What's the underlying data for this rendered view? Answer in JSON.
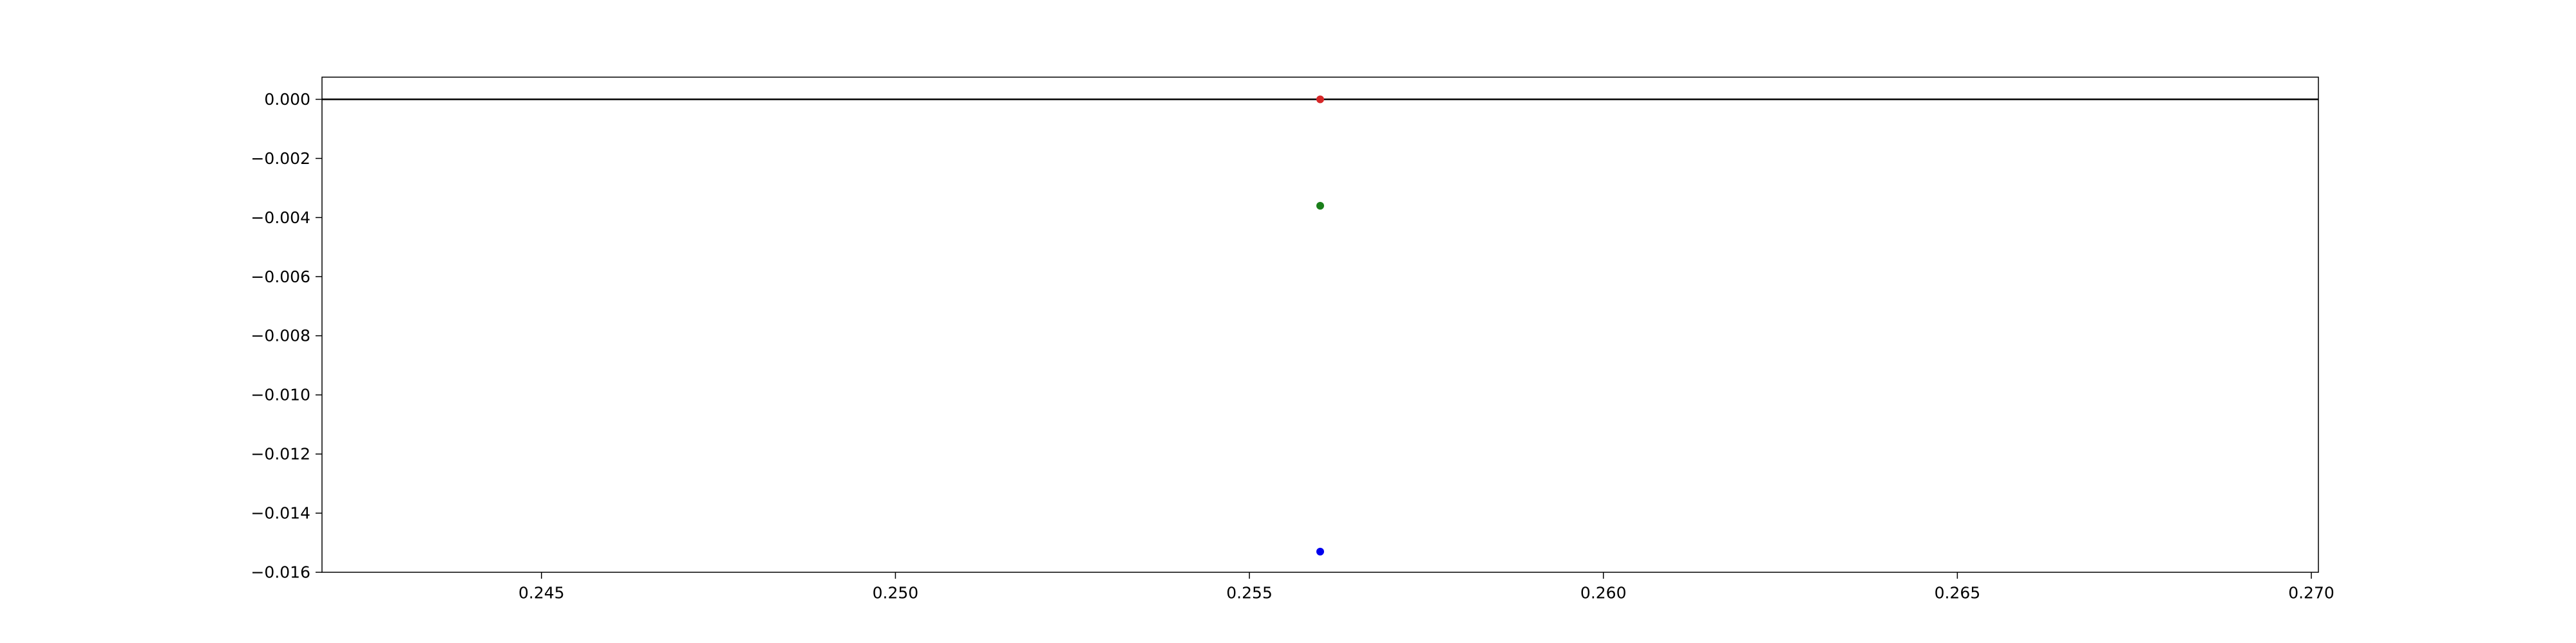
{
  "chart_data": {
    "type": "scatter",
    "xlim": [
      0.2419,
      0.2701
    ],
    "ylim": [
      -0.016,
      0.00075
    ],
    "x_ticks": [
      {
        "value": 0.245,
        "label": "0.245"
      },
      {
        "value": 0.25,
        "label": "0.250"
      },
      {
        "value": 0.255,
        "label": "0.255"
      },
      {
        "value": 0.26,
        "label": "0.260"
      },
      {
        "value": 0.265,
        "label": "0.265"
      },
      {
        "value": 0.27,
        "label": "0.270"
      }
    ],
    "y_ticks": [
      {
        "value": 0.0,
        "label": "0.000"
      },
      {
        "value": -0.002,
        "label": "−0.002"
      },
      {
        "value": -0.004,
        "label": "−0.004"
      },
      {
        "value": -0.006,
        "label": "−0.006"
      },
      {
        "value": -0.008,
        "label": "−0.008"
      },
      {
        "value": -0.01,
        "label": "−0.010"
      },
      {
        "value": -0.012,
        "label": "−0.012"
      },
      {
        "value": -0.014,
        "label": "−0.014"
      },
      {
        "value": -0.016,
        "label": "−0.016"
      }
    ],
    "hline": {
      "y": 0.0,
      "color": "#000000"
    },
    "points": [
      {
        "x": 0.256,
        "y": 0.0,
        "color": "#d62728"
      },
      {
        "x": 0.256,
        "y": -0.0036,
        "color": "#1a7f1a"
      },
      {
        "x": 0.256,
        "y": -0.0153,
        "color": "#0000ee"
      }
    ],
    "grid": false,
    "legend": "none",
    "title": "",
    "xlabel": "",
    "ylabel": ""
  }
}
